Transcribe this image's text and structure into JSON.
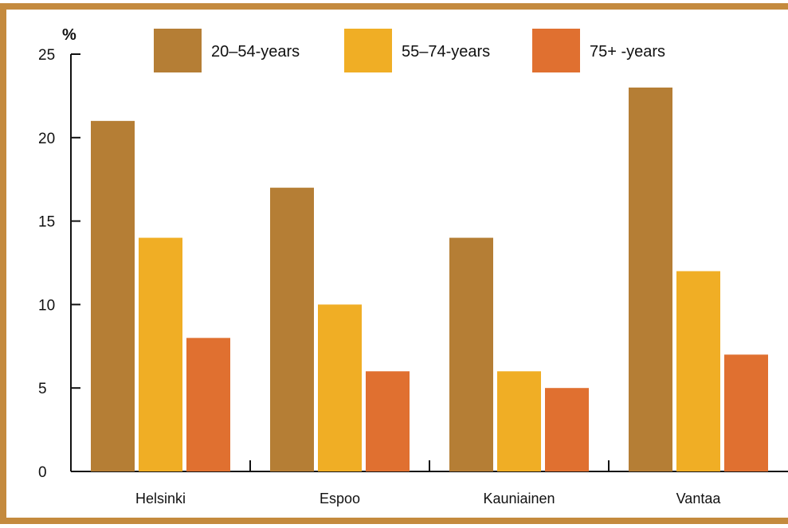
{
  "chart_data": {
    "type": "bar",
    "title": "",
    "xlabel": "",
    "ylabel": "%",
    "ylim": [
      0,
      25
    ],
    "yticks": [
      0,
      5,
      10,
      15,
      20,
      25
    ],
    "grid": false,
    "legend_position": "top",
    "categories": [
      "Helsinki",
      "Espoo",
      "Kauniainen",
      "Vantaa"
    ],
    "series": [
      {
        "name": "20–54-years",
        "color": "#b57e35",
        "values": [
          21,
          17,
          14,
          23
        ]
      },
      {
        "name": "55–74-years",
        "color": "#f0ae25",
        "values": [
          14,
          10,
          6,
          12
        ]
      },
      {
        "name": "75+ -years",
        "color": "#e07030",
        "values": [
          8,
          6,
          5,
          7
        ]
      }
    ],
    "frame_color": "#c48a3e"
  }
}
